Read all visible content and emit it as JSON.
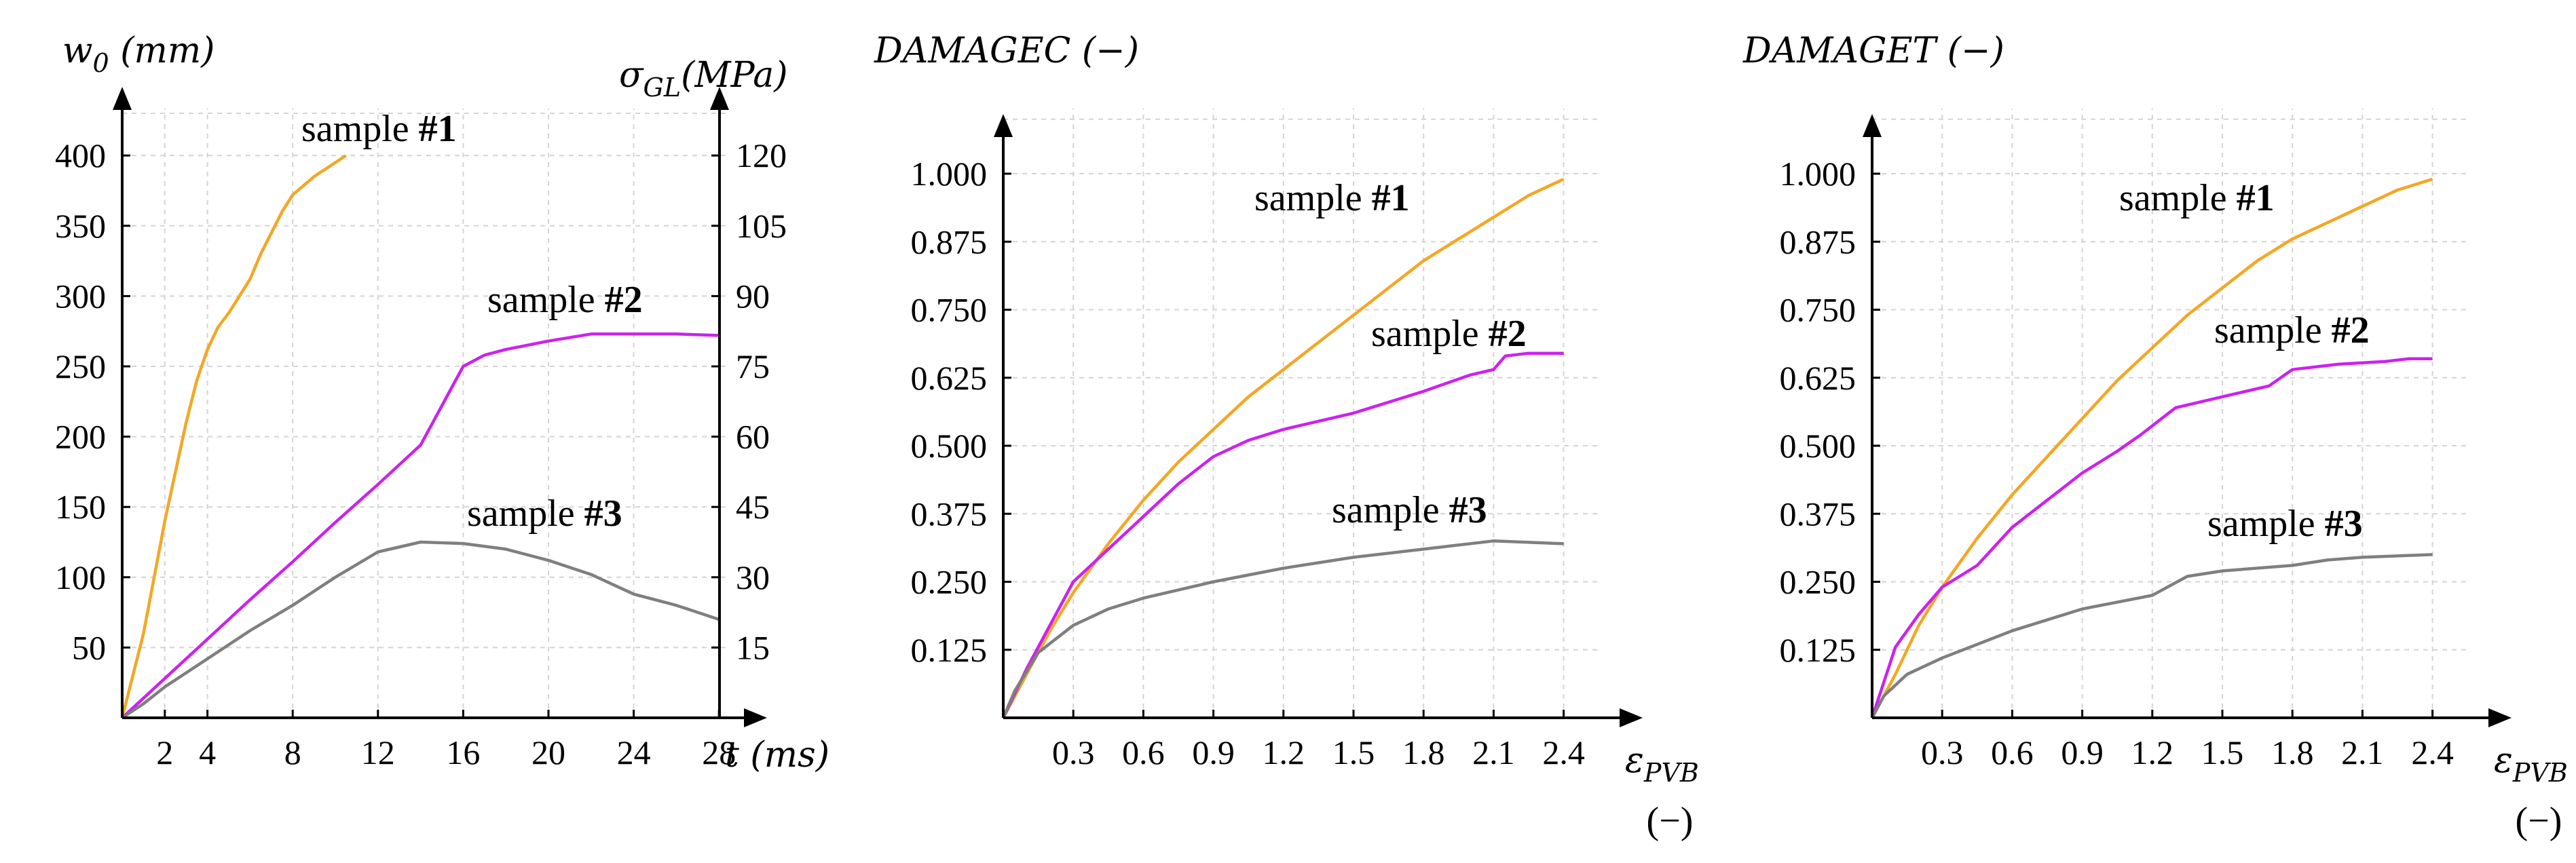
{
  "chart_data": [
    {
      "type": "line",
      "panel": "left",
      "ylabel_left": {
        "main": "w",
        "sub": "0",
        "unit": " (mm)"
      },
      "ylabel_right": {
        "main": "σ",
        "sub": "GL",
        "unit": "(MPa)"
      },
      "xlabel": "t (ms)",
      "x_ticks": [
        "2",
        "4",
        "8",
        "12",
        "16",
        "20",
        "24",
        "28"
      ],
      "y_ticks_left": [
        "50",
        "100",
        "150",
        "200",
        "250",
        "300",
        "350",
        "400"
      ],
      "y_ticks_right": [
        "15",
        "30",
        "45",
        "60",
        "75",
        "90",
        "105",
        "120"
      ],
      "xlim": [
        0,
        30
      ],
      "ylim": [
        0,
        450
      ],
      "grid": true,
      "series": [
        {
          "name": "sample #1",
          "label_prefix": "sample ",
          "label_bold": "#1",
          "color": "#F5A623",
          "points": [
            [
              0,
              0
            ],
            [
              0.5,
              30
            ],
            [
              1,
              60
            ],
            [
              1.5,
              100
            ],
            [
              2,
              140
            ],
            [
              2.5,
              175
            ],
            [
              3,
              210
            ],
            [
              3.5,
              240
            ],
            [
              4,
              262
            ],
            [
              4.5,
              278
            ],
            [
              5,
              288
            ],
            [
              5.5,
              300
            ],
            [
              6,
              312
            ],
            [
              6.5,
              330
            ],
            [
              7,
              345
            ],
            [
              7.5,
              360
            ],
            [
              8,
              372
            ],
            [
              9,
              385
            ],
            [
              10,
              395
            ],
            [
              10.5,
              400
            ]
          ]
        },
        {
          "name": "sample #2",
          "label_prefix": "sample ",
          "label_bold": "#2",
          "color": "#CC22EE",
          "points": [
            [
              0,
              0
            ],
            [
              2,
              28
            ],
            [
              4,
              56
            ],
            [
              6,
              84
            ],
            [
              8,
              111
            ],
            [
              10,
              139
            ],
            [
              12,
              166
            ],
            [
              14,
              194
            ],
            [
              15,
              222
            ],
            [
              16,
              250
            ],
            [
              17,
              258
            ],
            [
              18,
              262
            ],
            [
              20,
              268
            ],
            [
              22,
              273
            ],
            [
              24,
              273
            ],
            [
              26,
              273
            ],
            [
              28,
              272
            ]
          ]
        },
        {
          "name": "sample #3",
          "label_prefix": "sample ",
          "label_bold": "#3",
          "color": "#7F7F7F",
          "points": [
            [
              0,
              0
            ],
            [
              1,
              10
            ],
            [
              2,
              22
            ],
            [
              4,
              42
            ],
            [
              6,
              62
            ],
            [
              8,
              80
            ],
            [
              10,
              100
            ],
            [
              12,
              118
            ],
            [
              14,
              125
            ],
            [
              16,
              124
            ],
            [
              18,
              120
            ],
            [
              20,
              112
            ],
            [
              22,
              102
            ],
            [
              24,
              88
            ],
            [
              26,
              80
            ],
            [
              28,
              70
            ]
          ]
        }
      ]
    },
    {
      "type": "line",
      "panel": "middle",
      "ylabel": "DAMAGEC (−)",
      "xlabel_main": "ε",
      "xlabel_sub": "PVB",
      "xlabel_unit": "(−)",
      "x_ticks": [
        "0.3",
        "0.6",
        "0.9",
        "1.2",
        "1.5",
        "1.8",
        "2.1",
        "2.4"
      ],
      "y_ticks": [
        "0.125",
        "0.250",
        "0.375",
        "0.500",
        "0.625",
        "0.750",
        "0.875",
        "1.000"
      ],
      "xlim": [
        0,
        2.7
      ],
      "ylim": [
        0,
        1.1
      ],
      "grid": true,
      "series": [
        {
          "name": "sample #1",
          "label_prefix": "sample ",
          "label_bold": "#1",
          "color": "#F5A623",
          "points": [
            [
              0,
              0
            ],
            [
              0.1,
              0.08
            ],
            [
              0.2,
              0.16
            ],
            [
              0.3,
              0.23
            ],
            [
              0.45,
              0.32
            ],
            [
              0.6,
              0.4
            ],
            [
              0.75,
              0.47
            ],
            [
              0.9,
              0.53
            ],
            [
              1.05,
              0.59
            ],
            [
              1.2,
              0.64
            ],
            [
              1.35,
              0.69
            ],
            [
              1.5,
              0.74
            ],
            [
              1.65,
              0.79
            ],
            [
              1.8,
              0.84
            ],
            [
              1.95,
              0.88
            ],
            [
              2.1,
              0.92
            ],
            [
              2.25,
              0.96
            ],
            [
              2.4,
              0.99
            ]
          ]
        },
        {
          "name": "sample #2",
          "label_prefix": "sample ",
          "label_bold": "#2",
          "color": "#CC22EE",
          "points": [
            [
              0,
              0
            ],
            [
              0.1,
              0.09
            ],
            [
              0.2,
              0.17
            ],
            [
              0.3,
              0.25
            ],
            [
              0.45,
              0.31
            ],
            [
              0.6,
              0.37
            ],
            [
              0.75,
              0.43
            ],
            [
              0.9,
              0.48
            ],
            [
              1.05,
              0.51
            ],
            [
              1.2,
              0.53
            ],
            [
              1.5,
              0.56
            ],
            [
              1.8,
              0.6
            ],
            [
              2.0,
              0.63
            ],
            [
              2.1,
              0.64
            ],
            [
              2.15,
              0.665
            ],
            [
              2.25,
              0.67
            ],
            [
              2.4,
              0.67
            ]
          ]
        },
        {
          "name": "sample #3",
          "label_prefix": "sample ",
          "label_bold": "#3",
          "color": "#7F7F7F",
          "points": [
            [
              0,
              0
            ],
            [
              0.05,
              0.05
            ],
            [
              0.15,
              0.12
            ],
            [
              0.3,
              0.17
            ],
            [
              0.45,
              0.2
            ],
            [
              0.6,
              0.22
            ],
            [
              0.9,
              0.25
            ],
            [
              1.2,
              0.275
            ],
            [
              1.5,
              0.295
            ],
            [
              1.8,
              0.31
            ],
            [
              2.1,
              0.325
            ],
            [
              2.4,
              0.32
            ]
          ]
        }
      ]
    },
    {
      "type": "line",
      "panel": "right",
      "ylabel": "DAMAGET (−)",
      "xlabel_main": "ε",
      "xlabel_sub": "PVB",
      "xlabel_unit": "(−)",
      "x_ticks": [
        "0.3",
        "0.6",
        "0.9",
        "1.2",
        "1.5",
        "1.8",
        "2.1",
        "2.4"
      ],
      "y_ticks": [
        "0.125",
        "0.250",
        "0.375",
        "0.500",
        "0.625",
        "0.750",
        "0.875",
        "1.000"
      ],
      "xlim": [
        0,
        2.7
      ],
      "ylim": [
        0,
        1.1
      ],
      "grid": true,
      "series": [
        {
          "name": "sample #1",
          "label_prefix": "sample ",
          "label_bold": "#1",
          "color": "#F5A623",
          "points": [
            [
              0,
              0
            ],
            [
              0.1,
              0.08
            ],
            [
              0.2,
              0.17
            ],
            [
              0.3,
              0.24
            ],
            [
              0.45,
              0.33
            ],
            [
              0.6,
              0.41
            ],
            [
              0.75,
              0.48
            ],
            [
              0.9,
              0.55
            ],
            [
              1.05,
              0.62
            ],
            [
              1.2,
              0.68
            ],
            [
              1.35,
              0.74
            ],
            [
              1.5,
              0.79
            ],
            [
              1.65,
              0.84
            ],
            [
              1.8,
              0.88
            ],
            [
              1.95,
              0.91
            ],
            [
              2.1,
              0.94
            ],
            [
              2.25,
              0.97
            ],
            [
              2.4,
              0.99
            ]
          ]
        },
        {
          "name": "sample #2",
          "label_prefix": "sample ",
          "label_bold": "#2",
          "color": "#CC22EE",
          "points": [
            [
              0,
              0
            ],
            [
              0.1,
              0.13
            ],
            [
              0.2,
              0.19
            ],
            [
              0.3,
              0.24
            ],
            [
              0.45,
              0.28
            ],
            [
              0.6,
              0.35
            ],
            [
              0.75,
              0.4
            ],
            [
              0.9,
              0.45
            ],
            [
              1.05,
              0.49
            ],
            [
              1.15,
              0.52
            ],
            [
              1.3,
              0.57
            ],
            [
              1.5,
              0.59
            ],
            [
              1.7,
              0.61
            ],
            [
              1.8,
              0.64
            ],
            [
              2.0,
              0.65
            ],
            [
              2.2,
              0.655
            ],
            [
              2.3,
              0.66
            ],
            [
              2.4,
              0.66
            ]
          ]
        },
        {
          "name": "sample #3",
          "label_prefix": "sample ",
          "label_bold": "#3",
          "color": "#7F7F7F",
          "points": [
            [
              0,
              0
            ],
            [
              0.05,
              0.04
            ],
            [
              0.15,
              0.08
            ],
            [
              0.3,
              0.11
            ],
            [
              0.6,
              0.16
            ],
            [
              0.9,
              0.2
            ],
            [
              1.2,
              0.225
            ],
            [
              1.35,
              0.26
            ],
            [
              1.5,
              0.27
            ],
            [
              1.8,
              0.28
            ],
            [
              1.95,
              0.29
            ],
            [
              2.1,
              0.295
            ],
            [
              2.4,
              0.3
            ]
          ]
        }
      ]
    }
  ]
}
